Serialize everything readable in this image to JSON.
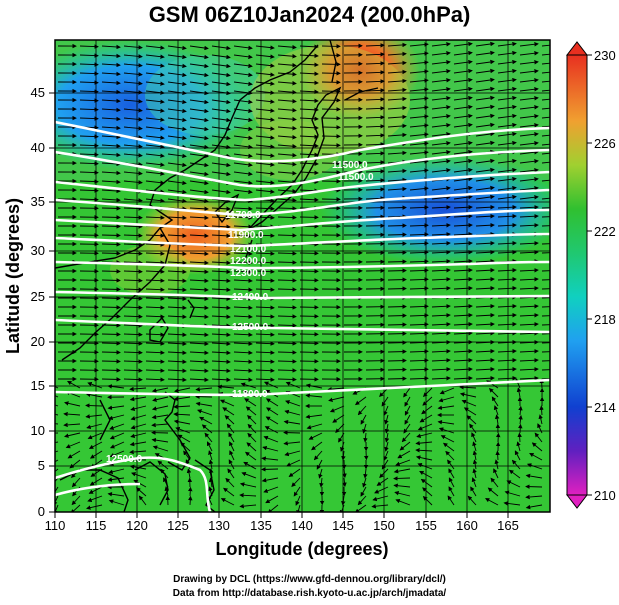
{
  "title": "GSM 06Z10Jan2024 (200.0hPa)",
  "xlabel": "Longitude (degrees)",
  "ylabel": "Latitude  (degrees)",
  "x_ticks": [
    "110",
    "115",
    "120",
    "125",
    "130",
    "135",
    "140",
    "145",
    "150",
    "155",
    "160",
    "165"
  ],
  "y_ticks": [
    "0",
    "5",
    "10",
    "15",
    "20",
    "25",
    "30",
    "35",
    "40",
    "45"
  ],
  "colorbar": {
    "ticks": [
      "230",
      "226",
      "222",
      "218",
      "214",
      "210"
    ]
  },
  "contour_labels": [
    "11500.0",
    "11500.0",
    "11700.0",
    "11900.0",
    "12100.0",
    "12200.0",
    "12300.0",
    "12400.0",
    "12500.0",
    "11800.0",
    "12500.0"
  ],
  "footer": {
    "line1": "Drawing by DCL (https://www.gfd-dennou.org/library/dcl/)",
    "line2": "Data from http://database.rish.kyoto-u.ac.jp/arch/jmadata/"
  },
  "chart_data": {
    "type": "heatmap",
    "title": "GSM 06Z10Jan2024 (200.0hPa)",
    "xlabel": "Longitude (degrees)",
    "ylabel": "Latitude  (degrees)",
    "xlim": [
      110,
      170
    ],
    "ylim": [
      0,
      50
    ],
    "color_range": [
      210,
      230
    ],
    "overlays": [
      "temperature shading",
      "geopotential height contours (white)",
      "wind streamlines/arrows",
      "coastlines",
      "lat/lon grid"
    ]
  }
}
